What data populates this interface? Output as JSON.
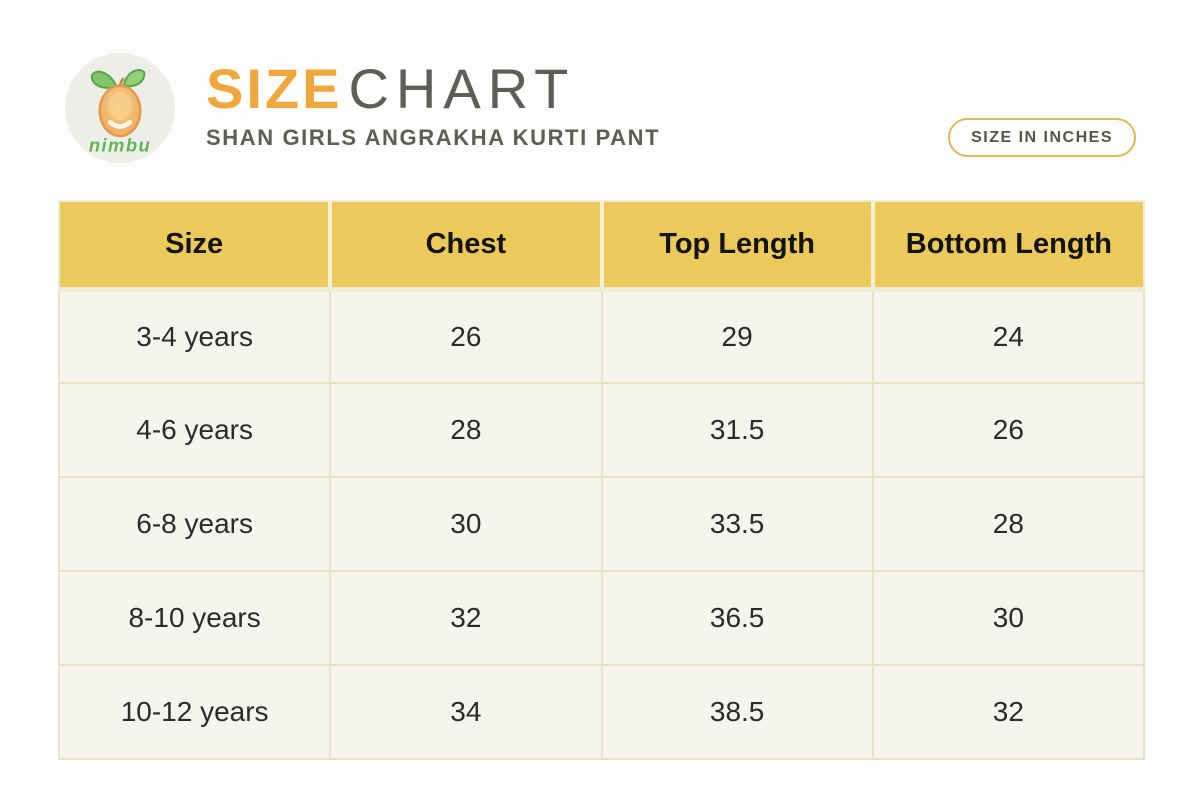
{
  "brand": {
    "logo_text": "nimbu"
  },
  "header": {
    "title_primary": "SIZE",
    "title_secondary": "CHART",
    "subtitle": "SHAN GIRLS ANGRAKHA KURTI PANT",
    "unit_badge": "SIZE IN INCHES"
  },
  "colors": {
    "accent_orange": "#F0A73D",
    "header_yellow": "#ECC95B",
    "cell_cream": "#F5F4ED",
    "cell_border": "#E5E3C2",
    "text_gray": "#5E5D59",
    "badge_border": "#DCB95C",
    "logo_green": "#5FB556"
  },
  "chart_data": {
    "type": "table",
    "title": "SIZE CHART",
    "subtitle": "SHAN GIRLS ANGRAKHA KURTI PANT",
    "unit": "inches",
    "unit_label": "SIZE IN INCHES",
    "columns": [
      "Size",
      "Chest",
      "Top Length",
      "Bottom Length"
    ],
    "rows": [
      [
        "3-4 years",
        "26",
        "29",
        "24"
      ],
      [
        "4-6 years",
        "28",
        "31.5",
        "26"
      ],
      [
        "6-8 years",
        "30",
        "33.5",
        "28"
      ],
      [
        "8-10 years",
        "32",
        "36.5",
        "30"
      ],
      [
        "10-12 years",
        "34",
        "38.5",
        "32"
      ]
    ]
  }
}
